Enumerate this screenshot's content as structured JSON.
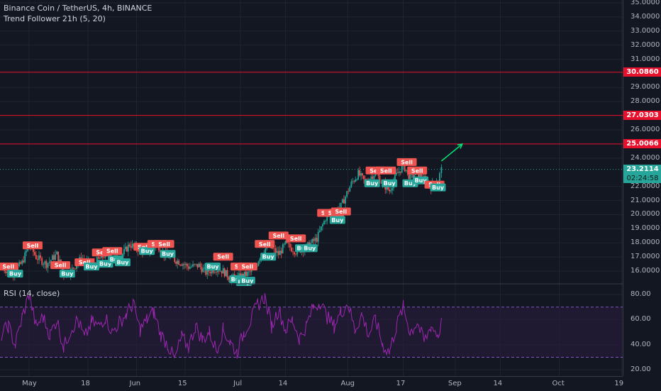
{
  "header": {
    "symbol_title": "Binance Coin / TetherUS, 4h, BINANCE",
    "indicator_title": "Trend Follower 21h (5, 20)",
    "rsi_title": "RSI (14, close)"
  },
  "chart_data": [
    {
      "type": "line",
      "title": "Binance Coin / TetherUS, 4h, BINANCE",
      "x_ticks": [
        "May",
        "18",
        "Jun",
        "15",
        "Jul",
        "14",
        "Aug",
        "17",
        "Sep",
        "14",
        "Oct",
        "19"
      ],
      "y_ticks": [
        "16.0000",
        "17.0000",
        "18.0000",
        "19.0000",
        "20.0000",
        "21.0000",
        "22.0000",
        "24.0000",
        "26.0000",
        "28.0000",
        "29.0000",
        "31.0000",
        "32.0000",
        "33.0000",
        "34.0000",
        "35.0000"
      ],
      "ylim": [
        15.1,
        35.2
      ],
      "series": [
        {
          "values": [
            {
              "x": "Apr 23",
              "y": 16.3
            },
            {
              "x": "Apr 26",
              "y": 15.8
            },
            {
              "x": "Apr 29",
              "y": 16.6
            },
            {
              "x": "May 1",
              "y": 17.9
            },
            {
              "x": "May 3",
              "y": 17.0
            },
            {
              "x": "May 6",
              "y": 16.5
            },
            {
              "x": "May 9",
              "y": 17.2
            },
            {
              "x": "May 11",
              "y": 15.8
            },
            {
              "x": "May 13",
              "y": 16.0
            },
            {
              "x": "May 16",
              "y": 16.9
            },
            {
              "x": "May 19",
              "y": 16.4
            },
            {
              "x": "May 21",
              "y": 16.8
            },
            {
              "x": "May 23",
              "y": 17.2
            },
            {
              "x": "May 26",
              "y": 16.9
            },
            {
              "x": "May 28",
              "y": 17.2
            },
            {
              "x": "May 30",
              "y": 17.9
            },
            {
              "x": "Jun 1",
              "y": 17.6
            },
            {
              "x": "Jun 4",
              "y": 17.4
            },
            {
              "x": "Jun 7",
              "y": 17.9
            },
            {
              "x": "Jun 9",
              "y": 17.2
            },
            {
              "x": "Jun 12",
              "y": 16.8
            },
            {
              "x": "Jun 14",
              "y": 16.6
            },
            {
              "x": "Jun 16",
              "y": 16.3
            },
            {
              "x": "Jun 19",
              "y": 16.4
            },
            {
              "x": "Jun 21",
              "y": 15.9
            },
            {
              "x": "Jun 24",
              "y": 16.2
            },
            {
              "x": "Jun 26",
              "y": 16.0
            },
            {
              "x": "Jun 28",
              "y": 15.5
            },
            {
              "x": "Jul 1",
              "y": 15.6
            },
            {
              "x": "Jul 3",
              "y": 15.8
            },
            {
              "x": "Jul 5",
              "y": 16.1
            },
            {
              "x": "Jul 7",
              "y": 17.3
            },
            {
              "x": "Jul 9",
              "y": 17.8
            },
            {
              "x": "Jul 12",
              "y": 17.2
            },
            {
              "x": "Jul 14",
              "y": 17.9
            },
            {
              "x": "Jul 17",
              "y": 17.4
            },
            {
              "x": "Jul 20",
              "y": 17.7
            },
            {
              "x": "Jul 23",
              "y": 18.3
            },
            {
              "x": "Jul 26",
              "y": 20.0
            },
            {
              "x": "Jul 28",
              "y": 20.2
            },
            {
              "x": "Jul 30",
              "y": 20.6
            },
            {
              "x": "Aug 2",
              "y": 22.2
            },
            {
              "x": "Aug 4",
              "y": 22.9
            },
            {
              "x": "Aug 6",
              "y": 22.3
            },
            {
              "x": "Aug 9",
              "y": 23.0
            },
            {
              "x": "Aug 11",
              "y": 22.2
            },
            {
              "x": "Aug 13",
              "y": 21.7
            },
            {
              "x": "Aug 15",
              "y": 22.8
            },
            {
              "x": "Aug 17",
              "y": 23.5
            },
            {
              "x": "Aug 19",
              "y": 22.6
            },
            {
              "x": "Aug 21",
              "y": 23.0
            },
            {
              "x": "Aug 23",
              "y": 22.5
            },
            {
              "x": "Aug 25",
              "y": 22.0
            },
            {
              "x": "Aug 27",
              "y": 22.5
            },
            {
              "x": "Aug 28",
              "y": 23.2
            }
          ]
        }
      ],
      "horizontal_levels": [
        {
          "value": 30.086,
          "label": "30.0860",
          "color": "#e8112d"
        },
        {
          "value": 27.0303,
          "label": "27.0303",
          "color": "#e8112d"
        },
        {
          "value": 25.0066,
          "label": "25.0066",
          "color": "#e8112d"
        }
      ],
      "current_price": {
        "value": 23.2114,
        "label": "23.2114",
        "countdown": "02:24:58",
        "color": "#26a69a"
      },
      "projection_arrow": {
        "from": {
          "x": "Aug 28",
          "y": 23.8
        },
        "to": {
          "x": "Sep 3",
          "y": 25.0
        },
        "color": "#00e676"
      },
      "signals": [
        {
          "label": "Sell",
          "x": "Apr 25",
          "y": 16.3,
          "color": "#ef5350"
        },
        {
          "label": "Buy",
          "x": "Apr 27",
          "y": 15.8,
          "color": "#26a69a"
        },
        {
          "label": "Sell",
          "x": "May 2",
          "y": 17.8,
          "color": "#ef5350"
        },
        {
          "label": "Sell",
          "x": "May 10",
          "y": 16.4,
          "color": "#ef5350"
        },
        {
          "label": "Buy",
          "x": "May 12",
          "y": 15.8,
          "color": "#26a69a"
        },
        {
          "label": "Sell",
          "x": "May 17",
          "y": 16.6,
          "color": "#ef5350"
        },
        {
          "label": "Buy",
          "x": "May 19",
          "y": 16.3,
          "color": "#26a69a"
        },
        {
          "label": "Sell",
          "x": "May 22",
          "y": 17.3,
          "color": "#ef5350"
        },
        {
          "label": "Buy",
          "x": "May 23",
          "y": 16.5,
          "color": "#26a69a"
        },
        {
          "label": "Sell",
          "x": "May 25",
          "y": 17.4,
          "color": "#ef5350"
        },
        {
          "label": "Buy",
          "x": "May 26",
          "y": 16.8,
          "color": "#26a69a"
        },
        {
          "label": "Buy",
          "x": "May 28",
          "y": 16.6,
          "color": "#26a69a"
        },
        {
          "label": "Sell",
          "x": "Jun 3",
          "y": 17.7,
          "color": "#ef5350"
        },
        {
          "label": "Buy",
          "x": "Jun 4",
          "y": 17.4,
          "color": "#26a69a"
        },
        {
          "label": "Sell",
          "x": "Jun 7",
          "y": 17.9,
          "color": "#ef5350"
        },
        {
          "label": "Sell",
          "x": "Jun 9",
          "y": 17.9,
          "color": "#ef5350"
        },
        {
          "label": "Buy",
          "x": "Jun 10",
          "y": 17.2,
          "color": "#26a69a"
        },
        {
          "label": "Buy",
          "x": "Jun 23",
          "y": 16.3,
          "color": "#26a69a"
        },
        {
          "label": "Sell",
          "x": "Jun 26",
          "y": 17.0,
          "color": "#ef5350"
        },
        {
          "label": "Buy",
          "x": "Jun 30",
          "y": 15.4,
          "color": "#26a69a"
        },
        {
          "label": "Sell",
          "x": "Jul 1",
          "y": 16.3,
          "color": "#ef5350"
        },
        {
          "label": "Buy",
          "x": "Jul 2",
          "y": 15.2,
          "color": "#26a69a"
        },
        {
          "label": "Sell",
          "x": "Jul 3",
          "y": 16.3,
          "color": "#ef5350"
        },
        {
          "label": "Buy",
          "x": "Jul 3",
          "y": 15.3,
          "color": "#26a69a"
        },
        {
          "label": "Sell",
          "x": "Jul 8",
          "y": 17.9,
          "color": "#ef5350"
        },
        {
          "label": "Buy",
          "x": "Jul 9",
          "y": 17.0,
          "color": "#26a69a"
        },
        {
          "label": "Sell",
          "x": "Jul 12",
          "y": 18.5,
          "color": "#ef5350"
        },
        {
          "label": "Sell",
          "x": "Jul 17",
          "y": 18.3,
          "color": "#ef5350"
        },
        {
          "label": "Buy",
          "x": "Jul 19",
          "y": 17.6,
          "color": "#26a69a"
        },
        {
          "label": "Buy",
          "x": "Jul 21",
          "y": 17.6,
          "color": "#26a69a"
        },
        {
          "label": "Sell",
          "x": "Jul 26",
          "y": 20.1,
          "color": "#ef5350"
        },
        {
          "label": "Sell",
          "x": "Jul 28",
          "y": 20.1,
          "color": "#ef5350"
        },
        {
          "label": "Buy",
          "x": "Jul 29",
          "y": 19.6,
          "color": "#26a69a"
        },
        {
          "label": "Sell",
          "x": "Jul 30",
          "y": 20.2,
          "color": "#ef5350"
        },
        {
          "label": "Sell",
          "x": "Aug 9",
          "y": 23.1,
          "color": "#ef5350"
        },
        {
          "label": "Buy",
          "x": "Aug 8",
          "y": 22.2,
          "color": "#26a69a"
        },
        {
          "label": "Sell",
          "x": "Aug 12",
          "y": 23.1,
          "color": "#ef5350"
        },
        {
          "label": "Buy",
          "x": "Aug 13",
          "y": 22.2,
          "color": "#26a69a"
        },
        {
          "label": "Sell",
          "x": "Aug 18",
          "y": 23.7,
          "color": "#ef5350"
        },
        {
          "label": "Buy",
          "x": "Aug 19",
          "y": 22.2,
          "color": "#26a69a"
        },
        {
          "label": "Sell",
          "x": "Aug 21",
          "y": 23.1,
          "color": "#ef5350"
        },
        {
          "label": "Buy",
          "x": "Aug 22",
          "y": 22.4,
          "color": "#26a69a"
        },
        {
          "label": "B",
          "x": "Aug 25",
          "y": 22.1,
          "color": "#ef5350"
        },
        {
          "label": "Sell",
          "x": "Aug 26",
          "y": 22.1,
          "color": "#ef5350"
        },
        {
          "label": "Buy",
          "x": "Aug 27",
          "y": 21.9,
          "color": "#26a69a"
        }
      ]
    },
    {
      "type": "line",
      "title": "RSI (14, close)",
      "y_ticks": [
        "80.00",
        "60.00",
        "40.00",
        "20.00"
      ],
      "ylim": [
        15,
        88
      ],
      "bands": [
        70,
        30
      ],
      "band_color": "#7e57c2",
      "series": [
        {
          "color": "#9c27b0",
          "values": [
            {
              "x": "Apr 23",
              "y": 48
            },
            {
              "x": "Apr 25",
              "y": 55
            },
            {
              "x": "Apr 27",
              "y": 40
            },
            {
              "x": "Apr 29",
              "y": 62
            },
            {
              "x": "May 1",
              "y": 80
            },
            {
              "x": "May 3",
              "y": 55
            },
            {
              "x": "May 5",
              "y": 62
            },
            {
              "x": "May 7",
              "y": 48
            },
            {
              "x": "May 9",
              "y": 60
            },
            {
              "x": "May 11",
              "y": 38
            },
            {
              "x": "May 13",
              "y": 52
            },
            {
              "x": "May 15",
              "y": 60
            },
            {
              "x": "May 17",
              "y": 45
            },
            {
              "x": "May 19",
              "y": 58
            },
            {
              "x": "May 21",
              "y": 55
            },
            {
              "x": "May 23",
              "y": 62
            },
            {
              "x": "May 25",
              "y": 50
            },
            {
              "x": "May 27",
              "y": 58
            },
            {
              "x": "May 29",
              "y": 64
            },
            {
              "x": "May 31",
              "y": 73
            },
            {
              "x": "Jun 2",
              "y": 52
            },
            {
              "x": "Jun 4",
              "y": 60
            },
            {
              "x": "Jun 6",
              "y": 66
            },
            {
              "x": "Jun 8",
              "y": 48
            },
            {
              "x": "Jun 10",
              "y": 40
            },
            {
              "x": "Jun 12",
              "y": 28
            },
            {
              "x": "Jun 14",
              "y": 46
            },
            {
              "x": "Jun 16",
              "y": 38
            },
            {
              "x": "Jun 18",
              "y": 55
            },
            {
              "x": "Jun 20",
              "y": 44
            },
            {
              "x": "Jun 22",
              "y": 50
            },
            {
              "x": "Jun 24",
              "y": 36
            },
            {
              "x": "Jun 26",
              "y": 52
            },
            {
              "x": "Jun 28",
              "y": 42
            },
            {
              "x": "Jun 30",
              "y": 34
            },
            {
              "x": "Jul 2",
              "y": 50
            },
            {
              "x": "Jul 4",
              "y": 60
            },
            {
              "x": "Jul 6",
              "y": 72
            },
            {
              "x": "Jul 8",
              "y": 78
            },
            {
              "x": "Jul 10",
              "y": 55
            },
            {
              "x": "Jul 12",
              "y": 68
            },
            {
              "x": "Jul 14",
              "y": 52
            },
            {
              "x": "Jul 16",
              "y": 60
            },
            {
              "x": "Jul 18",
              "y": 45
            },
            {
              "x": "Jul 20",
              "y": 55
            },
            {
              "x": "Jul 22",
              "y": 70
            },
            {
              "x": "Jul 24",
              "y": 74
            },
            {
              "x": "Jul 26",
              "y": 62
            },
            {
              "x": "Jul 28",
              "y": 55
            },
            {
              "x": "Jul 30",
              "y": 66
            },
            {
              "x": "Aug 1",
              "y": 73
            },
            {
              "x": "Aug 3",
              "y": 52
            },
            {
              "x": "Aug 5",
              "y": 64
            },
            {
              "x": "Aug 7",
              "y": 48
            },
            {
              "x": "Aug 9",
              "y": 60
            },
            {
              "x": "Aug 11",
              "y": 40
            },
            {
              "x": "Aug 13",
              "y": 34
            },
            {
              "x": "Aug 15",
              "y": 55
            },
            {
              "x": "Aug 17",
              "y": 70
            },
            {
              "x": "Aug 19",
              "y": 50
            },
            {
              "x": "Aug 21",
              "y": 58
            },
            {
              "x": "Aug 23",
              "y": 42
            },
            {
              "x": "Aug 25",
              "y": 55
            },
            {
              "x": "Aug 27",
              "y": 48
            },
            {
              "x": "Aug 28",
              "y": 57
            }
          ]
        }
      ]
    }
  ],
  "price_axis": {
    "labels": [
      "35.0000",
      "34.0000",
      "33.0000",
      "32.0000",
      "31.0000",
      "29.0000",
      "28.0000",
      "26.0000",
      "24.0000",
      "22.0000",
      "21.0000",
      "20.0000",
      "19.0000",
      "18.0000",
      "17.0000",
      "16.0000"
    ],
    "rsi_labels": [
      "80.00",
      "60.00",
      "40.00",
      "20.00"
    ]
  },
  "time_axis": {
    "labels": [
      "May",
      "18",
      "Jun",
      "15",
      "Jul",
      "14",
      "Aug",
      "17",
      "Sep",
      "14",
      "Oct",
      "19"
    ]
  },
  "colors": {
    "background": "#131722",
    "grid": "#1f2430",
    "up_candle": "#26a69a",
    "down_candle": "#ef5350",
    "level_line": "#e8112d",
    "rsi_line": "#9c27b0",
    "rsi_band_fill": "#2a1b3d"
  }
}
